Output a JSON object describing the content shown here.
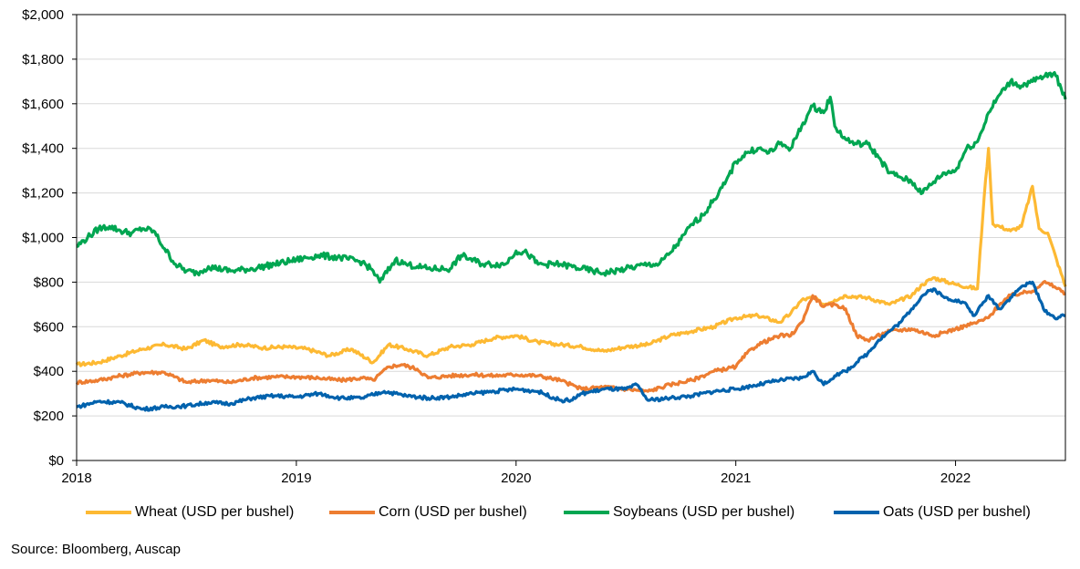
{
  "chart_data": {
    "type": "line",
    "title": "",
    "xlabel": "",
    "ylabel": "",
    "x_tick_labels": [
      "2018",
      "2019",
      "2020",
      "2021",
      "2022"
    ],
    "y_tick_labels": [
      "$0",
      "$200",
      "$400",
      "$600",
      "$800",
      "$1,000",
      "$1,200",
      "$1,400",
      "$1,600",
      "$1,800",
      "$2,000"
    ],
    "ylim": [
      0,
      2000
    ],
    "xlim": [
      2018.0,
      2022.5
    ],
    "grid": "horizontal",
    "legend_position": "bottom",
    "series": [
      {
        "name": "Wheat (USD per bushel)",
        "color": "#FDB933",
        "x": [
          2018.0,
          2018.1,
          2018.2,
          2018.3,
          2018.4,
          2018.5,
          2018.58,
          2018.65,
          2018.75,
          2018.85,
          2018.95,
          2019.05,
          2019.15,
          2019.25,
          2019.35,
          2019.42,
          2019.5,
          2019.6,
          2019.7,
          2019.8,
          2019.9,
          2020.0,
          2020.1,
          2020.2,
          2020.3,
          2020.4,
          2020.5,
          2020.6,
          2020.7,
          2020.8,
          2020.9,
          2021.0,
          2021.1,
          2021.2,
          2021.25,
          2021.3,
          2021.35,
          2021.4,
          2021.45,
          2021.5,
          2021.6,
          2021.7,
          2021.8,
          2021.85,
          2021.9,
          2022.0,
          2022.1,
          2022.13,
          2022.15,
          2022.17,
          2022.2,
          2022.25,
          2022.3,
          2022.35,
          2022.38,
          2022.42,
          2022.46,
          2022.5
        ],
        "values": [
          430,
          440,
          470,
          500,
          520,
          500,
          540,
          510,
          520,
          505,
          510,
          500,
          470,
          500,
          440,
          520,
          500,
          470,
          510,
          520,
          550,
          560,
          530,
          520,
          510,
          490,
          510,
          520,
          560,
          580,
          600,
          640,
          650,
          620,
          660,
          720,
          730,
          700,
          720,
          740,
          730,
          700,
          740,
          790,
          820,
          790,
          770,
          1180,
          1400,
          1060,
          1050,
          1030,
          1050,
          1230,
          1040,
          1020,
          900,
          780
        ]
      },
      {
        "name": "Corn (USD per bushel)",
        "color": "#ED7D31",
        "x": [
          2018.0,
          2018.1,
          2018.2,
          2018.3,
          2018.4,
          2018.5,
          2018.6,
          2018.7,
          2018.8,
          2018.9,
          2019.0,
          2019.1,
          2019.2,
          2019.3,
          2019.35,
          2019.42,
          2019.48,
          2019.55,
          2019.6,
          2019.7,
          2019.8,
          2019.9,
          2020.0,
          2020.1,
          2020.2,
          2020.3,
          2020.4,
          2020.5,
          2020.6,
          2020.7,
          2020.8,
          2020.85,
          2020.9,
          2021.0,
          2021.05,
          2021.1,
          2021.2,
          2021.25,
          2021.3,
          2021.35,
          2021.4,
          2021.45,
          2021.5,
          2021.55,
          2021.6,
          2021.7,
          2021.8,
          2021.9,
          2022.0,
          2022.1,
          2022.15,
          2022.2,
          2022.25,
          2022.3,
          2022.35,
          2022.4,
          2022.45,
          2022.5
        ],
        "values": [
          350,
          360,
          380,
          395,
          395,
          350,
          360,
          350,
          370,
          375,
          375,
          370,
          360,
          370,
          360,
          420,
          430,
          410,
          370,
          380,
          385,
          380,
          385,
          380,
          360,
          320,
          330,
          320,
          310,
          340,
          360,
          380,
          400,
          420,
          480,
          520,
          560,
          560,
          620,
          740,
          690,
          700,
          680,
          560,
          540,
          580,
          590,
          560,
          590,
          620,
          640,
          700,
          740,
          750,
          760,
          800,
          780,
          750
        ]
      },
      {
        "name": "Soybeans (USD per bushel)",
        "color": "#00A651",
        "x": [
          2018.0,
          2018.05,
          2018.1,
          2018.15,
          2018.2,
          2018.25,
          2018.3,
          2018.35,
          2018.4,
          2018.45,
          2018.5,
          2018.55,
          2018.6,
          2018.7,
          2018.8,
          2018.9,
          2019.0,
          2019.1,
          2019.2,
          2019.3,
          2019.35,
          2019.38,
          2019.45,
          2019.5,
          2019.55,
          2019.6,
          2019.7,
          2019.75,
          2019.85,
          2019.95,
          2020.0,
          2020.05,
          2020.1,
          2020.2,
          2020.3,
          2020.4,
          2020.5,
          2020.6,
          2020.65,
          2020.7,
          2020.75,
          2020.8,
          2020.85,
          2020.9,
          2020.95,
          2021.0,
          2021.05,
          2021.1,
          2021.15,
          2021.2,
          2021.25,
          2021.3,
          2021.35,
          2021.4,
          2021.43,
          2021.45,
          2021.5,
          2021.55,
          2021.6,
          2021.65,
          2021.7,
          2021.75,
          2021.8,
          2021.85,
          2021.9,
          2021.95,
          2022.0,
          2022.05,
          2022.1,
          2022.15,
          2022.2,
          2022.25,
          2022.3,
          2022.35,
          2022.4,
          2022.45,
          2022.5
        ],
        "values": [
          960,
          1000,
          1040,
          1050,
          1030,
          1020,
          1040,
          1030,
          950,
          880,
          850,
          840,
          870,
          850,
          860,
          880,
          900,
          920,
          910,
          890,
          850,
          800,
          900,
          880,
          870,
          860,
          860,
          920,
          880,
          880,
          940,
          930,
          880,
          880,
          860,
          840,
          860,
          880,
          880,
          930,
          990,
          1060,
          1100,
          1170,
          1240,
          1340,
          1380,
          1400,
          1380,
          1420,
          1400,
          1500,
          1590,
          1560,
          1630,
          1500,
          1440,
          1420,
          1420,
          1360,
          1290,
          1270,
          1250,
          1200,
          1250,
          1290,
          1300,
          1400,
          1430,
          1560,
          1640,
          1700,
          1680,
          1700,
          1720,
          1740,
          1620
        ]
      },
      {
        "name": "Oats (USD per bushel)",
        "color": "#0062AD",
        "x": [
          2018.0,
          2018.1,
          2018.2,
          2018.3,
          2018.4,
          2018.5,
          2018.6,
          2018.7,
          2018.8,
          2018.9,
          2019.0,
          2019.1,
          2019.2,
          2019.3,
          2019.4,
          2019.5,
          2019.6,
          2019.7,
          2019.8,
          2019.9,
          2020.0,
          2020.1,
          2020.2,
          2020.25,
          2020.3,
          2020.4,
          2020.5,
          2020.55,
          2020.6,
          2020.7,
          2020.8,
          2020.9,
          2021.0,
          2021.1,
          2021.2,
          2021.3,
          2021.35,
          2021.4,
          2021.45,
          2021.5,
          2021.55,
          2021.6,
          2021.65,
          2021.7,
          2021.75,
          2021.8,
          2021.85,
          2021.9,
          2021.95,
          2022.0,
          2022.05,
          2022.08,
          2022.1,
          2022.15,
          2022.2,
          2022.25,
          2022.28,
          2022.3,
          2022.35,
          2022.4,
          2022.45,
          2022.5
        ],
        "values": [
          240,
          265,
          260,
          230,
          240,
          245,
          260,
          255,
          280,
          290,
          285,
          300,
          280,
          280,
          310,
          290,
          280,
          285,
          300,
          310,
          320,
          310,
          270,
          270,
          300,
          320,
          320,
          340,
          270,
          280,
          290,
          310,
          320,
          340,
          360,
          370,
          400,
          340,
          380,
          400,
          440,
          480,
          540,
          580,
          620,
          680,
          740,
          770,
          730,
          720,
          700,
          650,
          670,
          740,
          680,
          730,
          760,
          780,
          800,
          680,
          640,
          650
        ]
      }
    ]
  },
  "source_note": "Source: Bloomberg, Auscap"
}
